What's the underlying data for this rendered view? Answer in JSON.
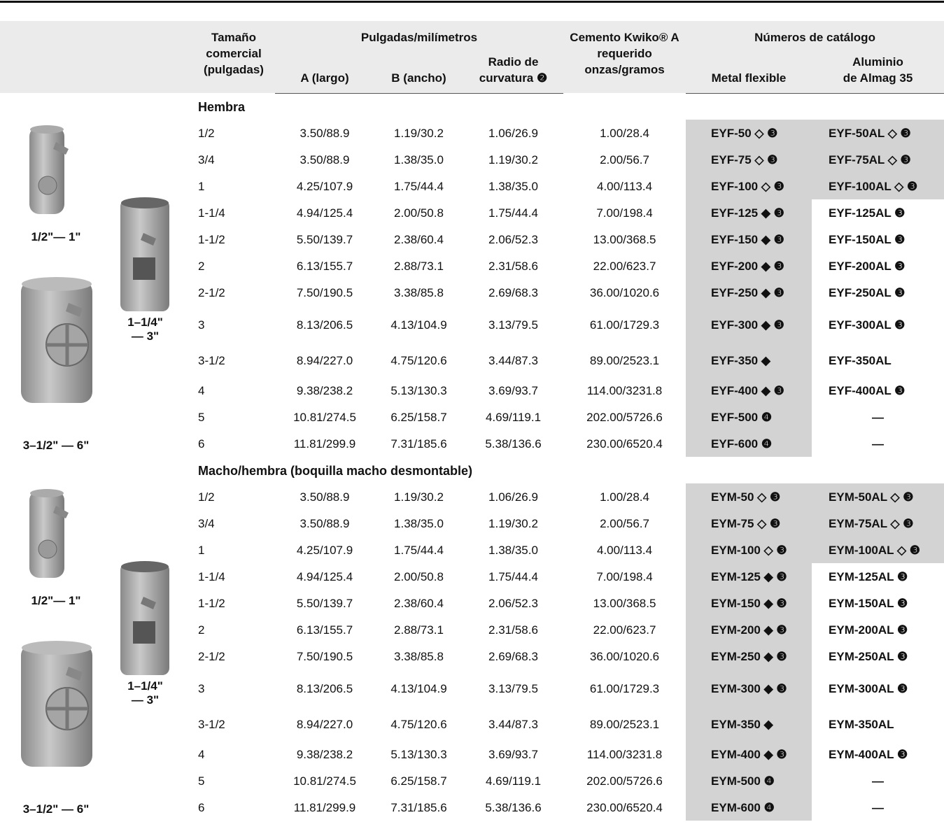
{
  "header": {
    "size": "Tamaño\ncomercial\n(pulgadas)",
    "group_dims": "Pulgadas/milímetros",
    "a": "A (largo)",
    "b": "B (ancho)",
    "radius": "Radio de\ncurvatura ❷",
    "cement": "Cemento Kwiko® A\nrequerido\nonzas/gramos",
    "group_catalog": "Números de catálogo",
    "metal": "Metal flexible",
    "aluminum": "Aluminio\nde Almag 35"
  },
  "sections": [
    {
      "title": "Hembra",
      "image_labels": [
        "1/2\"— 1\"",
        "1–1/4\"\n— 3\"",
        "3–1/2\" — 6\""
      ],
      "rows": [
        [
          "1/2",
          "3.50/88.9",
          "1.19/30.2",
          "1.06/26.9",
          "1.00/28.4",
          "EYF-50 ◇ ❸",
          "EYF-50AL ◇ ❸"
        ],
        [
          "3/4",
          "3.50/88.9",
          "1.38/35.0",
          "1.19/30.2",
          "2.00/56.7",
          "EYF-75 ◇ ❸",
          "EYF-75AL ◇ ❸"
        ],
        [
          "1",
          "4.25/107.9",
          "1.75/44.4",
          "1.38/35.0",
          "4.00/113.4",
          "EYF-100 ◇ ❸",
          "EYF-100AL ◇ ❸"
        ],
        [
          "1-1/4",
          "4.94/125.4",
          "2.00/50.8",
          "1.75/44.4",
          "7.00/198.4",
          "EYF-125 ◆ ❸",
          "EYF-125AL ❸"
        ],
        [
          "1-1/2",
          "5.50/139.7",
          "2.38/60.4",
          "2.06/52.3",
          "13.00/368.5",
          "EYF-150 ◆ ❸",
          "EYF-150AL ❸"
        ],
        [
          "2",
          "6.13/155.7",
          "2.88/73.1",
          "2.31/58.6",
          "22.00/623.7",
          "EYF-200 ◆ ❸",
          "EYF-200AL ❸"
        ],
        [
          "2-1/2",
          "7.50/190.5",
          "3.38/85.8",
          "2.69/68.3",
          "36.00/1020.6",
          "EYF-250 ◆ ❸",
          "EYF-250AL ❸"
        ],
        [
          "3",
          "8.13/206.5",
          "4.13/104.9",
          "3.13/79.5",
          "61.00/1729.3",
          "EYF-300 ◆ ❸",
          "EYF-300AL ❸"
        ],
        [
          "3-1/2",
          "8.94/227.0",
          "4.75/120.6",
          "3.44/87.3",
          "89.00/2523.1",
          "EYF-350 ◆",
          "EYF-350AL"
        ],
        [
          "4",
          "9.38/238.2",
          "5.13/130.3",
          "3.69/93.7",
          "114.00/3231.8",
          "EYF-400 ◆ ❸",
          "EYF-400AL ❸"
        ],
        [
          "5",
          "10.81/274.5",
          "6.25/158.7",
          "4.69/119.1",
          "202.00/5726.6",
          "EYF-500 ❹",
          "—"
        ],
        [
          "6",
          "11.81/299.9",
          "7.31/185.6",
          "5.38/136.6",
          "230.00/6520.4",
          "EYF-600 ❹",
          "—"
        ]
      ]
    },
    {
      "title": "Macho/hembra (boquilla macho desmontable)",
      "image_labels": [
        "1/2\"— 1\"",
        "1–1/4\"\n— 3\"",
        "3–1/2\" — 6\""
      ],
      "rows": [
        [
          "1/2",
          "3.50/88.9",
          "1.19/30.2",
          "1.06/26.9",
          "1.00/28.4",
          "EYM-50 ◇ ❸",
          "EYM-50AL ◇ ❸"
        ],
        [
          "3/4",
          "3.50/88.9",
          "1.38/35.0",
          "1.19/30.2",
          "2.00/56.7",
          "EYM-75 ◇ ❸",
          "EYM-75AL ◇ ❸"
        ],
        [
          "1",
          "4.25/107.9",
          "1.75/44.4",
          "1.38/35.0",
          "4.00/113.4",
          "EYM-100 ◇ ❸",
          "EYM-100AL ◇ ❸"
        ],
        [
          "1-1/4",
          "4.94/125.4",
          "2.00/50.8",
          "1.75/44.4",
          "7.00/198.4",
          "EYM-125 ◆ ❸",
          "EYM-125AL ❸"
        ],
        [
          "1-1/2",
          "5.50/139.7",
          "2.38/60.4",
          "2.06/52.3",
          "13.00/368.5",
          "EYM-150 ◆ ❸",
          "EYM-150AL ❸"
        ],
        [
          "2",
          "6.13/155.7",
          "2.88/73.1",
          "2.31/58.6",
          "22.00/623.7",
          "EYM-200 ◆ ❸",
          "EYM-200AL ❸"
        ],
        [
          "2-1/2",
          "7.50/190.5",
          "3.38/85.8",
          "2.69/68.3",
          "36.00/1020.6",
          "EYM-250 ◆ ❸",
          "EYM-250AL ❸"
        ],
        [
          "3",
          "8.13/206.5",
          "4.13/104.9",
          "3.13/79.5",
          "61.00/1729.3",
          "EYM-300 ◆ ❸",
          "EYM-300AL ❸"
        ],
        [
          "3-1/2",
          "8.94/227.0",
          "4.75/120.6",
          "3.44/87.3",
          "89.00/2523.1",
          "EYM-350 ◆",
          "EYM-350AL"
        ],
        [
          "4",
          "9.38/238.2",
          "5.13/130.3",
          "3.69/93.7",
          "114.00/3231.8",
          "EYM-400 ◆ ❸",
          "EYM-400AL ❸"
        ],
        [
          "5",
          "10.81/274.5",
          "6.25/158.7",
          "4.69/119.1",
          "202.00/5726.6",
          "EYM-500 ❹",
          "—"
        ],
        [
          "6",
          "11.81/299.9",
          "7.31/185.6",
          "5.38/136.6",
          "230.00/6520.4",
          "EYM-600 ❹",
          "—"
        ]
      ]
    }
  ]
}
